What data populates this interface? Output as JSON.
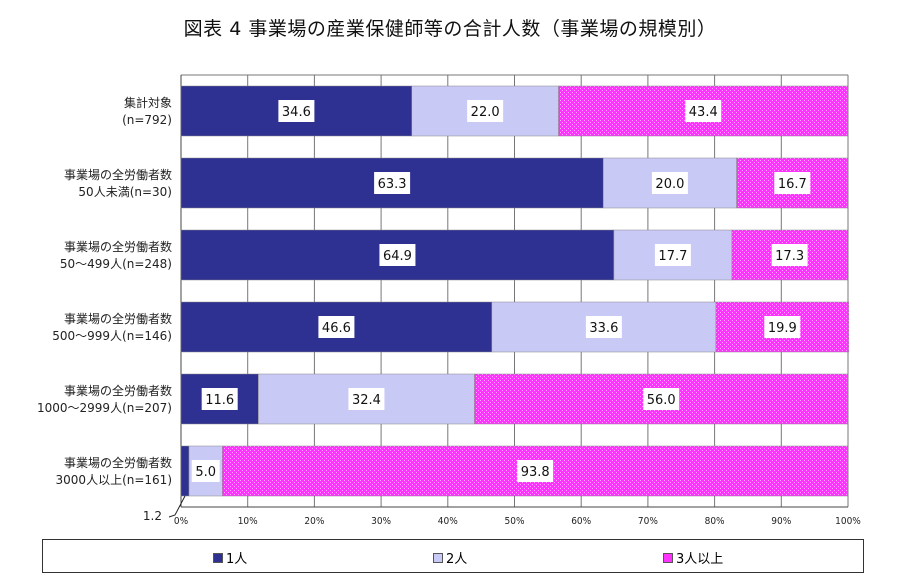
{
  "chart_data": {
    "type": "bar",
    "orientation": "horizontal",
    "stacked": true,
    "percent": true,
    "title": "図表 4  事業場の産業保健師等の合計人数（事業場の規模別）",
    "categories": [
      [
        "集計対象",
        "(n=792)"
      ],
      [
        "事業場の全労働者数",
        "50人未満(n=30)"
      ],
      [
        "事業場の全労働者数",
        "50～499人(n=248)"
      ],
      [
        "事業場の全労働者数",
        "500～999人(n=146)"
      ],
      [
        "事業場の全労働者数",
        "1000～2999人(n=207)"
      ],
      [
        "事業場の全労働者数",
        "3000人以上(n=161)"
      ]
    ],
    "series": [
      {
        "name": "1人",
        "color": "#2e3192",
        "values": [
          34.6,
          63.3,
          64.9,
          46.6,
          11.6,
          1.2
        ]
      },
      {
        "name": "2人",
        "color": "#c9c9f5",
        "values": [
          22.0,
          20.0,
          17.7,
          33.6,
          32.4,
          5.0
        ]
      },
      {
        "name": "3人以上",
        "color": "#ff33ff",
        "values": [
          43.4,
          16.7,
          17.3,
          19.9,
          56.0,
          93.8
        ]
      }
    ],
    "xlim": [
      0,
      100
    ],
    "xticks": [
      "0%",
      "10%",
      "20%",
      "30%",
      "40%",
      "50%",
      "60%",
      "70%",
      "80%",
      "90%",
      "100%"
    ],
    "grid": true,
    "legend": "bottom"
  }
}
